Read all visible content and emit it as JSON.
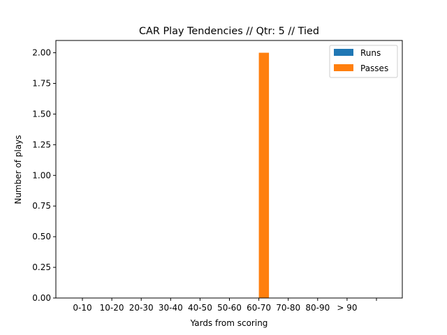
{
  "chart_data": {
    "type": "bar",
    "title": "CAR Play Tendencies // Qtr: 5 // Tied",
    "xlabel": "Yards from scoring",
    "ylabel": "Number of plays",
    "categories": [
      "0-10",
      "10-20",
      "20-30",
      "30-40",
      "40-50",
      "50-60",
      "60-70",
      "70-80",
      "80-90",
      "> 90"
    ],
    "xticks": [
      "0-10",
      "10-20",
      "20-30",
      "30-40",
      "40-50",
      "50-60",
      "60-70",
      "70-80",
      "80-90",
      "> 90",
      ""
    ],
    "series": [
      {
        "name": "Runs",
        "color": "#1f77b4",
        "values": [
          0,
          0,
          0,
          0,
          0,
          0,
          0,
          0,
          0,
          0
        ]
      },
      {
        "name": "Passes",
        "color": "#ff7f0e",
        "values": [
          0,
          0,
          0,
          0,
          0,
          0,
          2,
          0,
          0,
          0
        ]
      }
    ],
    "ylim": [
      0,
      2.1
    ],
    "yticks": [
      "0.00",
      "0.25",
      "0.50",
      "0.75",
      "1.00",
      "1.25",
      "1.50",
      "1.75",
      "2.00"
    ],
    "legend_position": "upper-right",
    "grid": false
  }
}
